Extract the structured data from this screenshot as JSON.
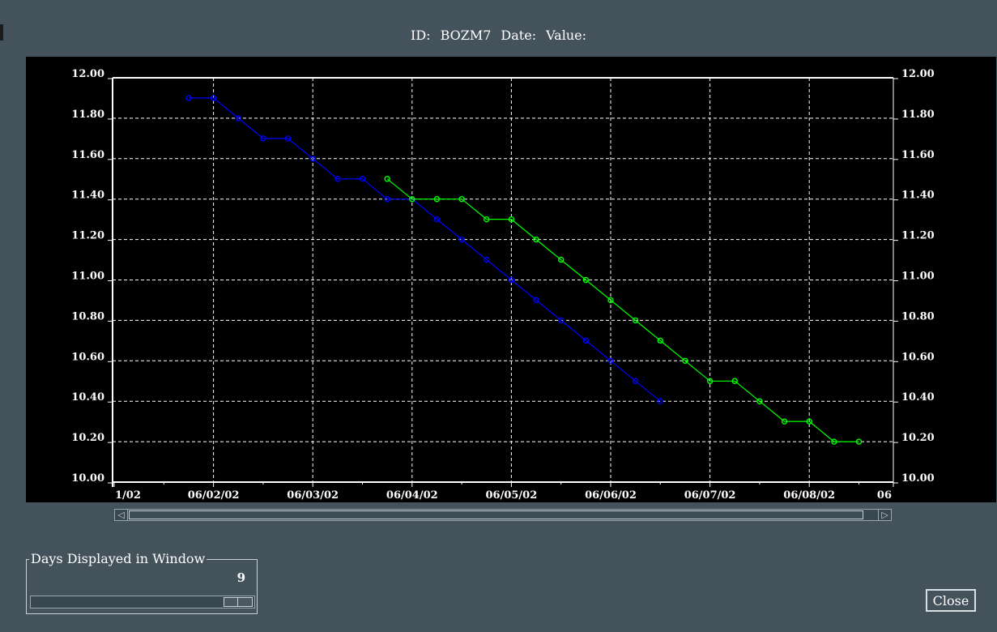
{
  "header": {
    "id_label": "ID:",
    "id_value": "BOZM7",
    "date_label": "Date:",
    "value_label": "Value:"
  },
  "chart_data": {
    "type": "line",
    "x_axis_labels": [
      "1/02",
      "06/02/02",
      "06/03/02",
      "06/04/02",
      "06/05/02",
      "06/06/02",
      "06/07/02",
      "06/08/02",
      "06"
    ],
    "ylim": [
      10.0,
      12.0
    ],
    "y_ticks": [
      "12.00",
      "11.80",
      "11.60",
      "11.40",
      "11.20",
      "11.00",
      "10.80",
      "10.60",
      "10.40",
      "10.20",
      "10.00"
    ],
    "grid": true,
    "x_unit": "days since 06/01/02 00:00",
    "series": [
      {
        "color": "#0000ff",
        "x": [
          0.75,
          1.0,
          1.25,
          1.5,
          1.75,
          2.0,
          2.25,
          2.5,
          2.75,
          3.0,
          3.25,
          3.5,
          3.75,
          4.0,
          4.25,
          4.5,
          4.75,
          5.0,
          5.25,
          5.5
        ],
        "values": [
          11.9,
          11.9,
          11.8,
          11.7,
          11.7,
          11.6,
          11.5,
          11.5,
          11.4,
          11.4,
          11.3,
          11.2,
          11.1,
          11.0,
          10.9,
          10.8,
          10.7,
          10.6,
          10.5,
          10.4
        ]
      },
      {
        "color": "#00ff00",
        "x": [
          2.75,
          3.0,
          3.25,
          3.5,
          3.75,
          4.0,
          4.25,
          4.5,
          4.75,
          5.0,
          5.25,
          5.5,
          5.75,
          6.0,
          6.25,
          6.5,
          6.75,
          7.0,
          7.25,
          7.5
        ],
        "values": [
          11.5,
          11.4,
          11.4,
          11.4,
          11.3,
          11.3,
          11.2,
          11.1,
          11.0,
          10.9,
          10.8,
          10.7,
          10.6,
          10.5,
          10.5,
          10.4,
          10.3,
          10.3,
          10.2,
          10.2
        ]
      }
    ]
  },
  "days_displayed": {
    "title": "Days Displayed in Window",
    "value": "9"
  },
  "close_button": {
    "label": "Close"
  },
  "scroll_arrows": {
    "left": "◁",
    "right": "▷"
  }
}
